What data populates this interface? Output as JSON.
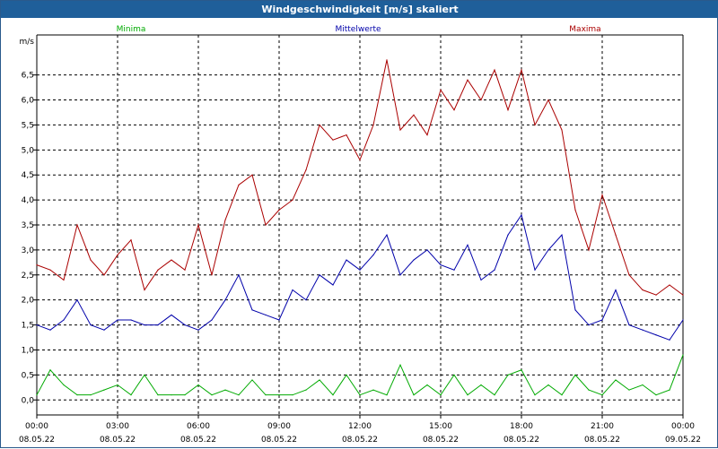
{
  "window": {
    "title": "Windgeschwindigkeit [m/s] skaliert"
  },
  "colors": {
    "minima": "#00aa00",
    "mittel": "#0000aa",
    "maxima": "#aa0000",
    "grid": "#000000",
    "titlebar": "#1f5f9a"
  },
  "chart_data": {
    "type": "line",
    "title": "Windgeschwindigkeit [m/s] skaliert",
    "ylabel": "m/s",
    "xlabel": "",
    "ylim": [
      -0.3,
      7.3
    ],
    "xlim": [
      0,
      24
    ],
    "grid": true,
    "legend_position": "top",
    "yticks": [
      "0,0",
      "0,5",
      "1,0",
      "1,5",
      "2,0",
      "2,5",
      "3,0",
      "3,5",
      "4,0",
      "4,5",
      "5,0",
      "5,5",
      "6,0",
      "6,5"
    ],
    "xticks": [
      {
        "time": "00:00",
        "date": "08.05.22"
      },
      {
        "time": "03:00",
        "date": "08.05.22"
      },
      {
        "time": "06:00",
        "date": "08.05.22"
      },
      {
        "time": "09:00",
        "date": "08.05.22"
      },
      {
        "time": "12:00",
        "date": "08.05.22"
      },
      {
        "time": "15:00",
        "date": "08.05.22"
      },
      {
        "time": "18:00",
        "date": "08.05.22"
      },
      {
        "time": "21:00",
        "date": "08.05.22"
      },
      {
        "time": "00:00",
        "date": "09.05.22"
      }
    ],
    "x_hours": [
      0,
      0.5,
      1,
      1.5,
      2,
      2.5,
      3,
      3.5,
      4,
      4.5,
      5,
      5.5,
      6,
      6.5,
      7,
      7.5,
      8,
      8.5,
      9,
      9.5,
      10,
      10.5,
      11,
      11.5,
      12,
      12.5,
      13,
      13.5,
      14,
      14.5,
      15,
      15.5,
      16,
      16.5,
      17,
      17.5,
      18,
      18.5,
      19,
      19.5,
      20,
      20.5,
      21,
      21.5,
      22,
      22.5,
      23,
      23.5,
      24
    ],
    "series": [
      {
        "name": "Minima",
        "color": "#00aa00",
        "values": [
          0.1,
          0.6,
          0.3,
          0.1,
          0.1,
          0.2,
          0.3,
          0.1,
          0.5,
          0.1,
          0.1,
          0.1,
          0.3,
          0.1,
          0.2,
          0.1,
          0.4,
          0.1,
          0.1,
          0.1,
          0.2,
          0.4,
          0.1,
          0.5,
          0.1,
          0.2,
          0.1,
          0.7,
          0.1,
          0.3,
          0.1,
          0.5,
          0.1,
          0.3,
          0.1,
          0.5,
          0.6,
          0.1,
          0.3,
          0.1,
          0.5,
          0.2,
          0.1,
          0.4,
          0.2,
          0.3,
          0.1,
          0.2,
          0.9
        ]
      },
      {
        "name": "Mittelwerte",
        "color": "#0000aa",
        "values": [
          1.5,
          1.4,
          1.6,
          2.0,
          1.5,
          1.4,
          1.6,
          1.6,
          1.5,
          1.5,
          1.7,
          1.5,
          1.4,
          1.6,
          2.0,
          2.5,
          1.8,
          1.7,
          1.6,
          2.2,
          2.0,
          2.5,
          2.3,
          2.8,
          2.6,
          2.9,
          3.3,
          2.5,
          2.8,
          3.0,
          2.7,
          2.6,
          3.1,
          2.4,
          2.6,
          3.3,
          3.7,
          2.6,
          3.0,
          3.3,
          1.8,
          1.5,
          1.6,
          2.2,
          1.5,
          1.4,
          1.3,
          1.2,
          1.6
        ]
      },
      {
        "name": "Maxima",
        "color": "#aa0000",
        "values": [
          2.7,
          2.6,
          2.4,
          3.5,
          2.8,
          2.5,
          2.9,
          3.2,
          2.2,
          2.6,
          2.8,
          2.6,
          3.5,
          2.5,
          3.6,
          4.3,
          4.5,
          3.5,
          3.8,
          4.0,
          4.6,
          5.5,
          5.2,
          5.3,
          4.8,
          5.5,
          6.8,
          5.4,
          5.7,
          5.3,
          6.2,
          5.8,
          6.4,
          6.0,
          6.6,
          5.8,
          6.6,
          5.5,
          6.0,
          5.4,
          3.8,
          3.0,
          4.1,
          3.3,
          2.5,
          2.2,
          2.1,
          2.3,
          2.1
        ]
      }
    ]
  }
}
